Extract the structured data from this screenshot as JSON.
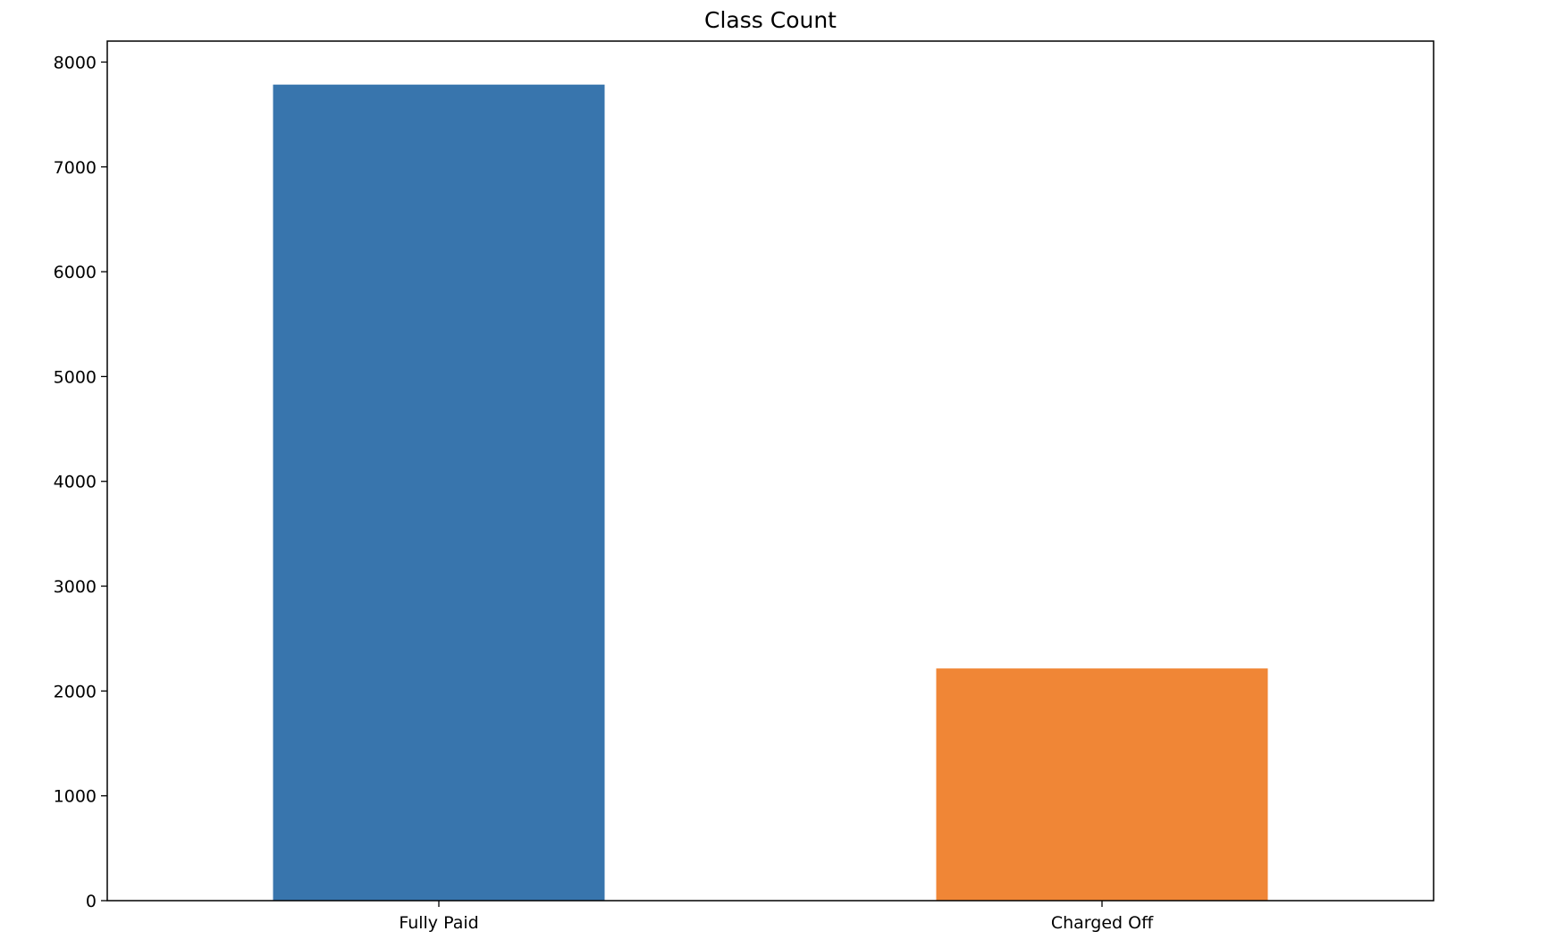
{
  "chart_data": {
    "type": "bar",
    "title": "Class Count",
    "xlabel": "",
    "ylabel": "",
    "categories": [
      "Fully Paid",
      "Charged Off"
    ],
    "values": [
      7785,
      2215
    ],
    "ylim": [
      0,
      8200
    ],
    "yticks": [
      "0",
      "1000",
      "2000",
      "3000",
      "4000",
      "5000",
      "6000",
      "7000",
      "8000"
    ],
    "colors": [
      "#3875ad",
      "#f08636"
    ],
    "grid": false,
    "legend": "none"
  }
}
